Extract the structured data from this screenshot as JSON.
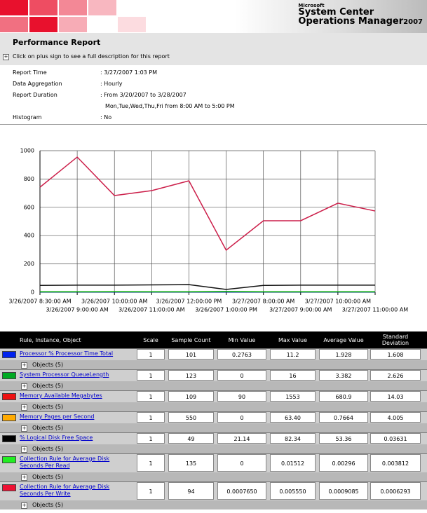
{
  "header": {
    "logo": [
      "Microsoft",
      "System Center",
      "Operations Manager",
      "2007"
    ]
  },
  "report": {
    "title": "Performance Report",
    "hint": "Click on plus sign to see a full description for this report",
    "params": [
      {
        "label": "Report Time",
        "value": [
          ": 3/27/2007 1:03 PM"
        ]
      },
      {
        "label": "Data Aggregation",
        "value": [
          ": Hourly"
        ]
      },
      {
        "label": "Report Duration",
        "value": [
          ": From 3/20/2007 to 3/28/2007",
          "Mon,Tue,Wed,Thu,Fri from 8:00 AM to 5:00 PM"
        ]
      },
      {
        "label": "Histogram",
        "value": [
          ": No"
        ]
      }
    ]
  },
  "chart_data": {
    "type": "line",
    "categories": [
      "3/26/2007 8:30:00 AM",
      "3/26/2007 9:00:00 AM",
      "3/26/2007 10:00:00 AM",
      "3/26/2007 11:00:00 AM",
      "3/26/2007 12:00:00 PM",
      "3/26/2007 1:00:00 PM",
      "3/27/2007 8:00:00 AM",
      "3/27/2007 9:00:00 AM",
      "3/27/2007 10:00:00 AM",
      "3/27/2007 11:00:00 AM"
    ],
    "series": [
      {
        "color": "#cc1f4a",
        "values": [
          742,
          955,
          683,
          718,
          787,
          297,
          505,
          505,
          629,
          574
        ]
      },
      {
        "color": "#111111",
        "values": [
          48,
          50,
          50,
          52,
          54,
          20,
          48,
          50,
          50,
          50
        ]
      },
      {
        "color": "#0033cc",
        "values": [
          2,
          2,
          2,
          2,
          2,
          2,
          2,
          2,
          2,
          2
        ]
      },
      {
        "color": "#00aa00",
        "values": [
          3,
          3,
          4,
          3,
          3,
          5,
          3,
          3,
          3,
          3
        ]
      }
    ],
    "ylim": [
      0,
      1000
    ],
    "yticks": [
      0,
      200,
      400,
      600,
      800,
      1000
    ],
    "grid": true
  },
  "table": {
    "columns": [
      "Rule, Instance, Object",
      "Scale",
      "Sample Count",
      "Min Value",
      "Max Value",
      "Average Value",
      "Standard Deviation"
    ],
    "rows": [
      {
        "color": "#0022ee",
        "name": "Processor % Processor Time Total",
        "cells": [
          "1",
          "101",
          "0.2763",
          "11.2",
          "1.928",
          "1.608"
        ],
        "sub": "Objects (5)"
      },
      {
        "color": "#00aa22",
        "name": "System Processor QueueLength",
        "cells": [
          "1",
          "123",
          "0",
          "16",
          "3.382",
          "2.626"
        ],
        "sub": "Objects (5)"
      },
      {
        "color": "#ee1111",
        "name": "Memory Available Megabytes",
        "cells": [
          "1",
          "109",
          "90",
          "1553",
          "680.9",
          "14.03"
        ],
        "sub": "Objects (5)"
      },
      {
        "color": "#ffaa00",
        "name": "Memory Pages per Second",
        "cells": [
          "1",
          "550",
          "0",
          "63.40",
          "0.7664",
          "4.005"
        ],
        "sub": "Objects (5)"
      },
      {
        "color": "#000000",
        "name": "% Logical Disk Free Space",
        "cells": [
          "1",
          "49",
          "21.14",
          "82.34",
          "53.36",
          "0.03631"
        ],
        "sub": "Objects (5)"
      },
      {
        "color": "#22ee22",
        "name": "Collection Rule for Average Disk Seconds Per Read",
        "cells": [
          "1",
          "135",
          "0",
          "0.01512",
          "0.00296",
          "0.003812"
        ],
        "sub": "Objects (5)"
      },
      {
        "color": "#ee1133",
        "name": "Collection Rule for Average Disk Seconds Per Write",
        "cells": [
          "1",
          "94",
          "0.0007650",
          "0.005550",
          "0.0009085",
          "0.0006293"
        ],
        "sub": "Objects (5)"
      }
    ]
  }
}
